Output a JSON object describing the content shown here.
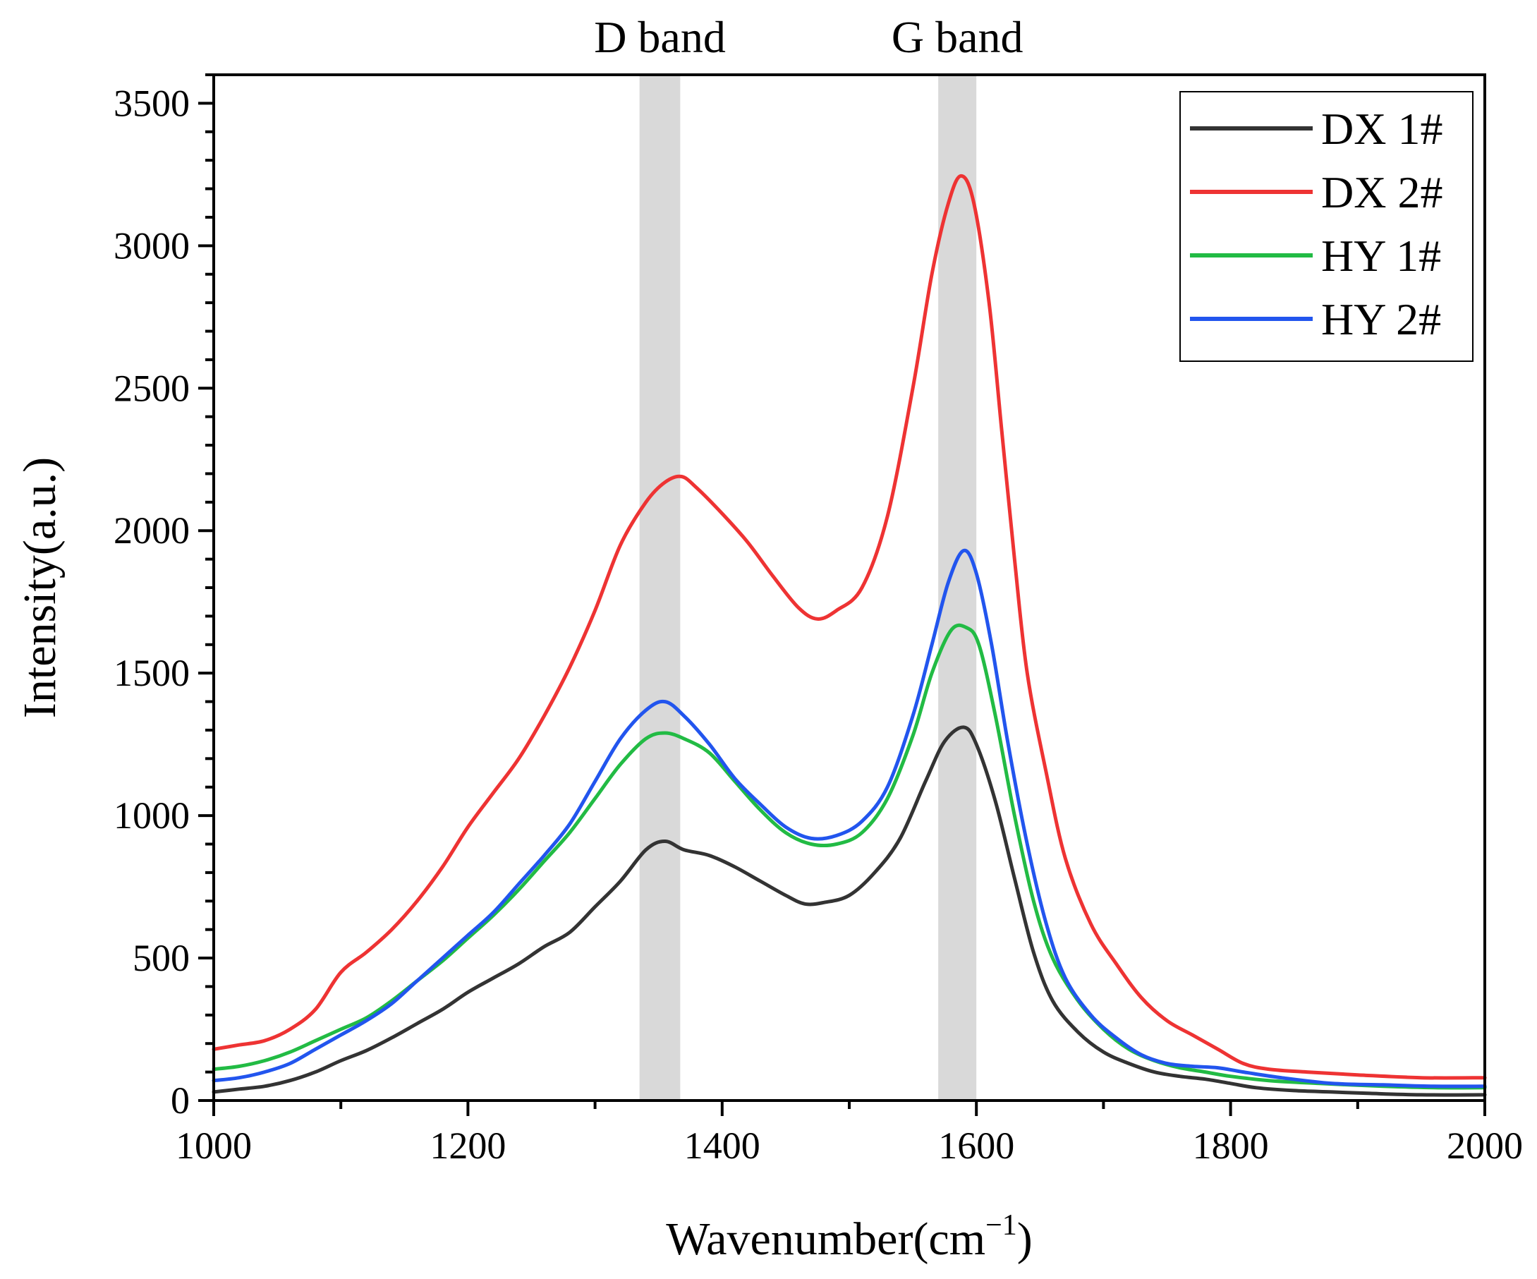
{
  "chart_data": {
    "type": "line",
    "title": "",
    "xlabel": "Wavenumber(cm",
    "xlabel_sup": "−1",
    "xlabel_close": ")",
    "ylabel": "Intensity(a.u.)",
    "xlim": [
      1000,
      2000
    ],
    "ylim": [
      0,
      3600
    ],
    "x_ticks": [
      1000,
      1200,
      1400,
      1600,
      1800,
      2000
    ],
    "y_ticks": [
      0,
      500,
      1000,
      1500,
      2000,
      2500,
      3000,
      3500
    ],
    "x_tick_labels": [
      "1000",
      "1200",
      "1400",
      "1600",
      "1800",
      "2000"
    ],
    "y_tick_labels": [
      "0",
      "500",
      "1000",
      "1500",
      "2000",
      "2500",
      "3000",
      "3500"
    ],
    "bands": [
      {
        "label": "D band",
        "from": 1335,
        "to": 1367
      },
      {
        "label": "G band",
        "from": 1570,
        "to": 1600
      }
    ],
    "legend_position": "top-right",
    "series": [
      {
        "name": "DX 1#",
        "color": "#333333",
        "points": [
          [
            1000,
            30
          ],
          [
            1020,
            40
          ],
          [
            1040,
            50
          ],
          [
            1060,
            70
          ],
          [
            1080,
            100
          ],
          [
            1100,
            140
          ],
          [
            1120,
            175
          ],
          [
            1140,
            220
          ],
          [
            1160,
            270
          ],
          [
            1180,
            320
          ],
          [
            1200,
            380
          ],
          [
            1220,
            430
          ],
          [
            1240,
            480
          ],
          [
            1260,
            540
          ],
          [
            1280,
            590
          ],
          [
            1300,
            680
          ],
          [
            1320,
            770
          ],
          [
            1340,
            880
          ],
          [
            1355,
            910
          ],
          [
            1370,
            880
          ],
          [
            1390,
            860
          ],
          [
            1410,
            820
          ],
          [
            1430,
            770
          ],
          [
            1450,
            720
          ],
          [
            1465,
            690
          ],
          [
            1480,
            695
          ],
          [
            1500,
            720
          ],
          [
            1520,
            800
          ],
          [
            1540,
            920
          ],
          [
            1560,
            1120
          ],
          [
            1575,
            1260
          ],
          [
            1590,
            1310
          ],
          [
            1600,
            1250
          ],
          [
            1615,
            1050
          ],
          [
            1630,
            780
          ],
          [
            1645,
            520
          ],
          [
            1660,
            350
          ],
          [
            1680,
            240
          ],
          [
            1700,
            170
          ],
          [
            1720,
            130
          ],
          [
            1740,
            100
          ],
          [
            1760,
            85
          ],
          [
            1780,
            75
          ],
          [
            1800,
            60
          ],
          [
            1820,
            45
          ],
          [
            1850,
            35
          ],
          [
            1880,
            30
          ],
          [
            1910,
            25
          ],
          [
            1950,
            20
          ],
          [
            2000,
            20
          ]
        ]
      },
      {
        "name": "DX 2#",
        "color": "#ee3333",
        "points": [
          [
            1000,
            180
          ],
          [
            1020,
            195
          ],
          [
            1040,
            210
          ],
          [
            1060,
            250
          ],
          [
            1080,
            320
          ],
          [
            1100,
            450
          ],
          [
            1120,
            520
          ],
          [
            1140,
            600
          ],
          [
            1160,
            700
          ],
          [
            1180,
            820
          ],
          [
            1200,
            960
          ],
          [
            1220,
            1080
          ],
          [
            1240,
            1200
          ],
          [
            1260,
            1350
          ],
          [
            1280,
            1520
          ],
          [
            1300,
            1720
          ],
          [
            1320,
            1950
          ],
          [
            1340,
            2100
          ],
          [
            1355,
            2170
          ],
          [
            1368,
            2190
          ],
          [
            1380,
            2150
          ],
          [
            1400,
            2060
          ],
          [
            1420,
            1960
          ],
          [
            1440,
            1840
          ],
          [
            1460,
            1730
          ],
          [
            1475,
            1690
          ],
          [
            1490,
            1720
          ],
          [
            1510,
            1800
          ],
          [
            1530,
            2050
          ],
          [
            1550,
            2500
          ],
          [
            1565,
            2900
          ],
          [
            1578,
            3150
          ],
          [
            1588,
            3245
          ],
          [
            1598,
            3150
          ],
          [
            1610,
            2800
          ],
          [
            1620,
            2350
          ],
          [
            1630,
            1900
          ],
          [
            1640,
            1500
          ],
          [
            1655,
            1150
          ],
          [
            1670,
            850
          ],
          [
            1690,
            620
          ],
          [
            1710,
            480
          ],
          [
            1730,
            360
          ],
          [
            1750,
            280
          ],
          [
            1770,
            230
          ],
          [
            1790,
            180
          ],
          [
            1810,
            130
          ],
          [
            1830,
            110
          ],
          [
            1860,
            100
          ],
          [
            1900,
            90
          ],
          [
            1950,
            80
          ],
          [
            2000,
            80
          ]
        ]
      },
      {
        "name": "HY 1#",
        "color": "#22bb44",
        "points": [
          [
            1000,
            110
          ],
          [
            1020,
            120
          ],
          [
            1040,
            140
          ],
          [
            1060,
            170
          ],
          [
            1080,
            210
          ],
          [
            1100,
            250
          ],
          [
            1120,
            290
          ],
          [
            1140,
            350
          ],
          [
            1160,
            420
          ],
          [
            1180,
            490
          ],
          [
            1200,
            570
          ],
          [
            1220,
            650
          ],
          [
            1240,
            740
          ],
          [
            1260,
            840
          ],
          [
            1280,
            940
          ],
          [
            1300,
            1060
          ],
          [
            1320,
            1180
          ],
          [
            1340,
            1270
          ],
          [
            1355,
            1290
          ],
          [
            1370,
            1270
          ],
          [
            1390,
            1220
          ],
          [
            1410,
            1120
          ],
          [
            1430,
            1020
          ],
          [
            1450,
            940
          ],
          [
            1470,
            900
          ],
          [
            1490,
            900
          ],
          [
            1510,
            940
          ],
          [
            1530,
            1060
          ],
          [
            1550,
            1280
          ],
          [
            1565,
            1500
          ],
          [
            1580,
            1650
          ],
          [
            1592,
            1660
          ],
          [
            1602,
            1600
          ],
          [
            1615,
            1350
          ],
          [
            1630,
            1000
          ],
          [
            1645,
            700
          ],
          [
            1660,
            500
          ],
          [
            1680,
            350
          ],
          [
            1700,
            250
          ],
          [
            1720,
            180
          ],
          [
            1740,
            140
          ],
          [
            1760,
            115
          ],
          [
            1780,
            100
          ],
          [
            1800,
            85
          ],
          [
            1830,
            70
          ],
          [
            1870,
            60
          ],
          [
            1920,
            50
          ],
          [
            1960,
            45
          ],
          [
            2000,
            45
          ]
        ]
      },
      {
        "name": "HY 2#",
        "color": "#2255ee",
        "points": [
          [
            1000,
            70
          ],
          [
            1020,
            80
          ],
          [
            1040,
            100
          ],
          [
            1060,
            130
          ],
          [
            1080,
            180
          ],
          [
            1100,
            230
          ],
          [
            1120,
            280
          ],
          [
            1140,
            340
          ],
          [
            1160,
            420
          ],
          [
            1180,
            500
          ],
          [
            1200,
            580
          ],
          [
            1220,
            660
          ],
          [
            1240,
            760
          ],
          [
            1260,
            860
          ],
          [
            1280,
            970
          ],
          [
            1300,
            1120
          ],
          [
            1320,
            1270
          ],
          [
            1340,
            1370
          ],
          [
            1355,
            1400
          ],
          [
            1370,
            1350
          ],
          [
            1390,
            1250
          ],
          [
            1410,
            1130
          ],
          [
            1430,
            1040
          ],
          [
            1450,
            960
          ],
          [
            1470,
            920
          ],
          [
            1490,
            930
          ],
          [
            1510,
            980
          ],
          [
            1530,
            1100
          ],
          [
            1550,
            1350
          ],
          [
            1565,
            1600
          ],
          [
            1578,
            1820
          ],
          [
            1590,
            1930
          ],
          [
            1600,
            1850
          ],
          [
            1612,
            1600
          ],
          [
            1625,
            1250
          ],
          [
            1640,
            900
          ],
          [
            1655,
            620
          ],
          [
            1670,
            430
          ],
          [
            1690,
            300
          ],
          [
            1710,
            220
          ],
          [
            1730,
            160
          ],
          [
            1750,
            130
          ],
          [
            1770,
            120
          ],
          [
            1790,
            115
          ],
          [
            1810,
            100
          ],
          [
            1840,
            80
          ],
          [
            1880,
            60
          ],
          [
            1920,
            55
          ],
          [
            1960,
            50
          ],
          [
            2000,
            50
          ]
        ]
      }
    ]
  }
}
